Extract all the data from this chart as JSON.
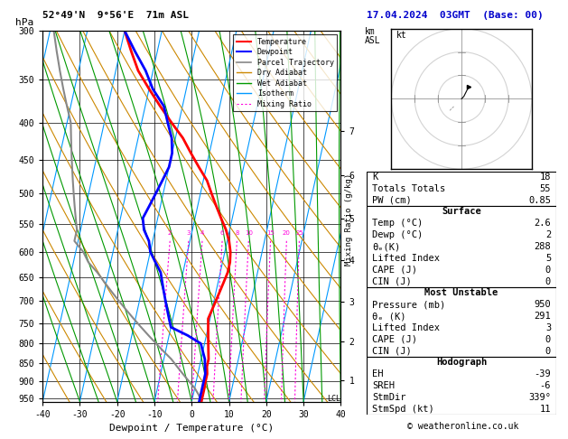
{
  "title_left": "52°49'N  9°56'E  71m ASL",
  "title_right": "17.04.2024  03GMT  (Base: 00)",
  "xlabel": "Dewpoint / Temperature (°C)",
  "temp_color": "#ff0000",
  "dewpoint_color": "#0000ff",
  "parcel_color": "#888888",
  "dry_adiabat_color": "#cc8800",
  "wet_adiabat_color": "#009900",
  "isotherm_color": "#0099ff",
  "mixing_ratio_color": "#ff00dd",
  "xmin": -40,
  "xmax": 40,
  "pmin": 300,
  "pmax": 960,
  "skew": 22,
  "stats": {
    "K": "18",
    "Totals_Totals": "55",
    "PW_cm": "0.85",
    "Surface_Temp": "2.6",
    "Surface_Dewp": "2",
    "Surface_theta_e": "288",
    "Surface_LiftedIndex": "5",
    "Surface_CAPE": "0",
    "Surface_CIN": "0",
    "MU_Pressure": "950",
    "MU_theta_e": "291",
    "MU_LiftedIndex": "3",
    "MU_CAPE": "0",
    "MU_CIN": "0",
    "EH": "-39",
    "SREH": "-6",
    "StmDir": "339°",
    "StmSpd": "11"
  },
  "temp_profile": {
    "pressure": [
      300,
      320,
      340,
      360,
      380,
      400,
      420,
      440,
      460,
      480,
      500,
      520,
      540,
      560,
      580,
      600,
      620,
      640,
      660,
      680,
      700,
      720,
      740,
      760,
      780,
      800,
      820,
      840,
      860,
      880,
      900,
      920,
      940,
      960
    ],
    "temp": [
      -40,
      -37,
      -34,
      -30,
      -26,
      -22,
      -18,
      -15,
      -12,
      -9,
      -7,
      -5,
      -3,
      -1,
      0.5,
      1.5,
      2,
      2,
      1.5,
      1,
      0.5,
      0,
      -0.5,
      0,
      0.5,
      1,
      1.5,
      2,
      2,
      2.5,
      2.5,
      2.6,
      2.6,
      2.6
    ]
  },
  "dewpoint_profile": {
    "pressure": [
      300,
      320,
      340,
      360,
      380,
      400,
      420,
      440,
      460,
      480,
      500,
      520,
      540,
      560,
      580,
      600,
      620,
      640,
      660,
      680,
      700,
      720,
      740,
      760,
      780,
      800,
      820,
      840,
      860,
      880,
      900,
      920,
      940,
      960
    ],
    "dewp": [
      -40,
      -36,
      -32,
      -29,
      -25,
      -23,
      -21,
      -20,
      -20,
      -21,
      -22,
      -23,
      -24,
      -23,
      -21,
      -20,
      -18,
      -16,
      -15,
      -14,
      -13,
      -12,
      -11,
      -10,
      -5,
      -1,
      0,
      1,
      1.5,
      2,
      2,
      2,
      2,
      2
    ]
  },
  "parcel_profile": {
    "pressure": [
      960,
      940,
      920,
      900,
      880,
      860,
      840,
      820,
      800,
      780,
      760,
      740,
      720,
      700,
      680,
      660,
      640,
      620,
      600,
      580,
      560,
      540,
      520,
      500,
      480,
      460,
      440,
      420,
      400,
      380,
      360,
      340,
      320,
      300
    ],
    "temp": [
      2.6,
      1.5,
      0,
      -2,
      -4,
      -6,
      -8,
      -10.5,
      -13,
      -15.5,
      -18,
      -20.5,
      -23,
      -25.5,
      -28,
      -30.5,
      -33,
      -36,
      -38,
      -41,
      -41,
      -42,
      -43,
      -44,
      -45,
      -46,
      -47,
      -48,
      -49,
      -51,
      -53,
      -55,
      -57,
      -59
    ]
  },
  "mixing_ratio_lines": [
    2,
    3,
    4,
    6,
    8,
    10,
    15,
    20,
    25
  ],
  "km_ticks": {
    "km": [
      1,
      2,
      3,
      4,
      5,
      6,
      7
    ],
    "pressure": [
      898,
      795,
      701,
      616,
      540,
      472,
      411
    ]
  },
  "copyright": "© weatheronline.co.uk"
}
